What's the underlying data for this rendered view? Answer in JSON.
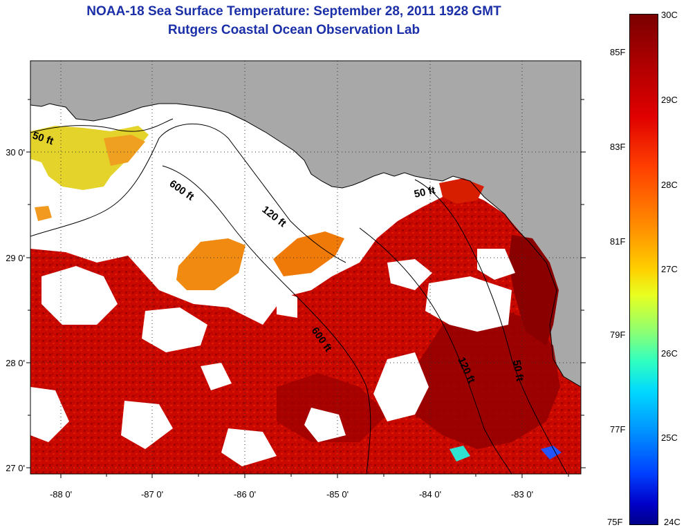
{
  "title": {
    "line1": "NOAA-18 Sea Surface Temperature:  September 28, 2011 1928 GMT",
    "line2": "Rutgers Coastal Ocean Observation Lab"
  },
  "map": {
    "x_ticks": [
      "-88 0'",
      "-87 0'",
      "-86 0'",
      "-85 0'",
      "-84 0'",
      "-83 0'"
    ],
    "y_ticks": [
      "30 0'",
      "29 0'",
      "28 0'",
      "27 0'"
    ],
    "contour_labels": [
      "50 ft",
      "600 ft",
      "120 ft",
      "50 ft",
      "600 ft",
      "120 ft",
      "50 ft"
    ],
    "colors": {
      "land": "#a8a8a8",
      "cloud": "#ffffff",
      "warm": "#cc0a00",
      "hot": "#8f0000",
      "mid": "#ee7a00",
      "cool": "#e8e030"
    }
  },
  "colorbar": {
    "fahrenheit": [
      "85F",
      "83F",
      "81F",
      "79F",
      "77F",
      "75F"
    ],
    "celsius": [
      "30C",
      "29C",
      "28C",
      "27C",
      "26C",
      "25C",
      "24C"
    ]
  }
}
